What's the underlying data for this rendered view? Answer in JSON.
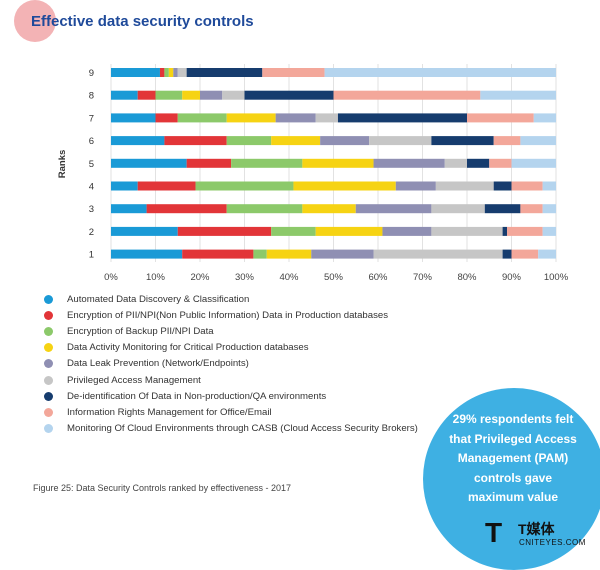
{
  "header": {
    "title": "Effective data security controls"
  },
  "chart_data": {
    "type": "bar",
    "orientation": "horizontal",
    "stacked": true,
    "ylabel": "Ranks",
    "categories": [
      "9",
      "8",
      "7",
      "6",
      "5",
      "4",
      "3",
      "2",
      "1"
    ],
    "x_ticks": [
      "0%",
      "10%",
      "20%",
      "30%",
      "40%",
      "50%",
      "60%",
      "70%",
      "80%",
      "90%",
      "100%"
    ],
    "xlim": [
      0,
      100
    ],
    "series": [
      {
        "name": "Automated Data Discovery & Classification",
        "color": "#1a9ad6",
        "values": [
          11,
          6,
          10,
          12,
          17,
          6,
          8,
          15,
          16
        ]
      },
      {
        "name": "Encryption of PII/NPI(Non Public Information) Data in Production databases",
        "color": "#e23538",
        "values": [
          1,
          4,
          5,
          14,
          10,
          13,
          18,
          21,
          16
        ]
      },
      {
        "name": "Encryption of Backup PII/NPI Data",
        "color": "#8cc96a",
        "values": [
          1,
          6,
          11,
          10,
          16,
          22,
          17,
          10,
          3
        ]
      },
      {
        "name": "Data Activity Monitoring for Critical Production databases",
        "color": "#f6d313",
        "values": [
          1,
          4,
          11,
          11,
          16,
          23,
          12,
          15,
          10
        ]
      },
      {
        "name": "Data Leak Prevention (Network/Endpoints)",
        "color": "#8f8fb3",
        "values": [
          1,
          5,
          9,
          11,
          16,
          9,
          17,
          11,
          14
        ]
      },
      {
        "name": "Privileged Access Management",
        "color": "#c6c6c6",
        "values": [
          2,
          5,
          5,
          14,
          5,
          13,
          12,
          16,
          29
        ]
      },
      {
        "name": "De-identification Of Data in Non-production/QA environments",
        "color": "#163c6e",
        "values": [
          17,
          20,
          29,
          14,
          5,
          4,
          8,
          1,
          2
        ]
      },
      {
        "name": "Information Rights Management for Office/Email",
        "color": "#f3a79a",
        "values": [
          14,
          33,
          15,
          6,
          5,
          7,
          5,
          8,
          6
        ]
      },
      {
        "name": "Monitoring Of Cloud Environments through CASB (Cloud Access Security Brokers)",
        "color": "#b4d4ee",
        "values": [
          52,
          17,
          5,
          8,
          10,
          3,
          3,
          3,
          4
        ]
      }
    ]
  },
  "caption": "Figure 25: Data Security Controls ranked by effectiveness - 2017",
  "callout": {
    "lines": [
      "29% respondents felt",
      "that Privileged Access",
      "Management (PAM)",
      "controls gave",
      "maximum value"
    ]
  },
  "watermark": {
    "mark": "T",
    "cn": "T媒体",
    "en": "CNITEYES.COM"
  }
}
